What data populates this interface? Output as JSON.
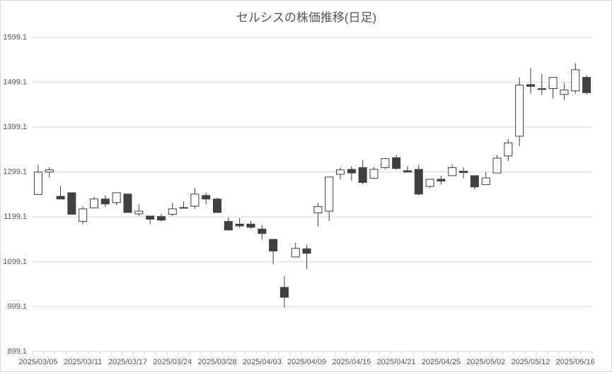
{
  "chart_data": {
    "type": "candlestick",
    "title": "セルシスの株価推移(日足)",
    "categories": [
      "2025/03/05",
      null,
      null,
      null,
      "2025/03/11",
      null,
      null,
      null,
      "2025/03/17",
      null,
      null,
      null,
      "2025/03/24",
      null,
      null,
      null,
      "2025/03/28",
      null,
      null,
      null,
      "2025/04/03",
      null,
      null,
      null,
      "2025/04/09",
      null,
      null,
      null,
      "2025/04/15",
      null,
      null,
      null,
      "2025/04/21",
      null,
      null,
      null,
      "2025/04/25",
      null,
      null,
      null,
      "2025/05/02",
      null,
      null,
      null,
      "2025/05/12",
      null,
      null,
      null,
      "2025/05/16",
      null
    ],
    "open": [
      1249,
      1299,
      1245,
      1253,
      1189,
      1219,
      1239,
      1231,
      1250,
      1206,
      1201,
      1200,
      1205,
      1220,
      1223,
      1247,
      1239,
      1189,
      1183,
      1183,
      1172,
      1149,
      1042,
      1110,
      1128,
      1208,
      1212,
      1294,
      1305,
      1309,
      1285,
      1309,
      1331,
      1302,
      1305,
      1267,
      1283,
      1291,
      1301,
      1291,
      1271,
      1297,
      1335,
      1379,
      1494,
      1485,
      1485,
      1472,
      1480,
      1510
    ],
    "high": [
      1315,
      1310,
      1268,
      1253,
      1222,
      1244,
      1247,
      1253,
      1250,
      1227,
      1201,
      1206,
      1230,
      1233,
      1264,
      1253,
      1242,
      1198,
      1197,
      1190,
      1181,
      1149,
      1068,
      1142,
      1137,
      1230,
      1288,
      1309,
      1312,
      1326,
      1310,
      1331,
      1337,
      1312,
      1315,
      1283,
      1291,
      1316,
      1310,
      1291,
      1299,
      1337,
      1373,
      1510,
      1531,
      1518,
      1510,
      1497,
      1542,
      1515
    ],
    "low": [
      1249,
      1287,
      1239,
      1205,
      1183,
      1219,
      1222,
      1225,
      1209,
      1201,
      1183,
      1189,
      1201,
      1219,
      1217,
      1227,
      1208,
      1170,
      1175,
      1173,
      1149,
      1094,
      997,
      1110,
      1083,
      1178,
      1190,
      1283,
      1280,
      1272,
      1285,
      1305,
      1304,
      1299,
      1247,
      1263,
      1271,
      1291,
      1285,
      1260,
      1271,
      1297,
      1324,
      1357,
      1474,
      1471,
      1463,
      1460,
      1474,
      1472
    ],
    "close": [
      1299,
      1304,
      1239,
      1205,
      1217,
      1239,
      1228,
      1253,
      1209,
      1212,
      1194,
      1192,
      1217,
      1219,
      1250,
      1239,
      1209,
      1170,
      1179,
      1176,
      1162,
      1123,
      1020,
      1129,
      1118,
      1222,
      1288,
      1304,
      1297,
      1276,
      1305,
      1329,
      1307,
      1299,
      1250,
      1283,
      1279,
      1309,
      1298,
      1266,
      1286,
      1330,
      1364,
      1493,
      1490,
      1483,
      1510,
      1482,
      1527,
      1476
    ],
    "up_color": "#ffffff",
    "down_color": "#404040",
    "outline_color": "#404040",
    "ylim": [
      899.1,
      1599.1
    ],
    "yticks": [
      899.1,
      999.1,
      1099.1,
      1199.1,
      1299.1,
      1399.1,
      1499.1,
      1599.1
    ],
    "grid": true
  }
}
